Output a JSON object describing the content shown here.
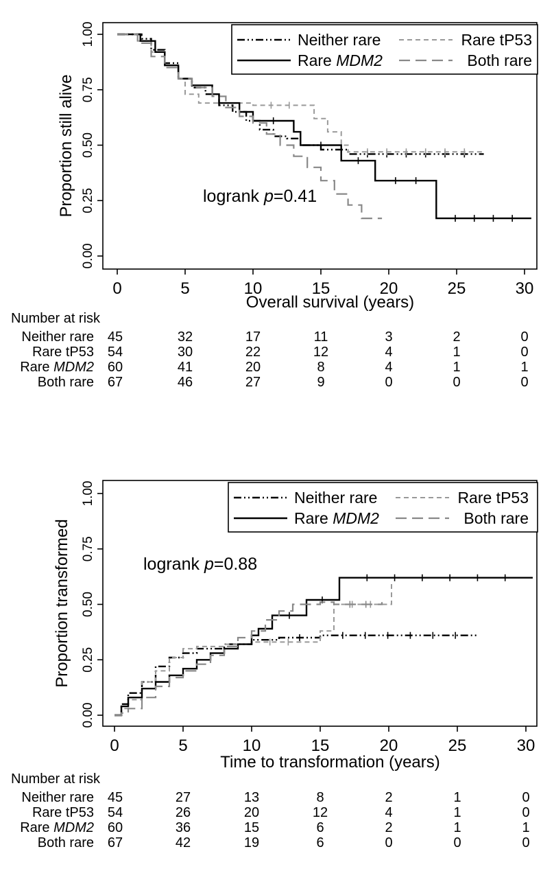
{
  "chart_data": [
    {
      "type": "line",
      "xlabel": "Overall survival (years)",
      "ylabel": "Proportion still alive",
      "xlim": [
        0,
        30.5
      ],
      "ylim": [
        0,
        1
      ],
      "xticks": [
        "0",
        "5",
        "10",
        "15",
        "20",
        "25",
        "30"
      ],
      "yticks": [
        "0.00",
        "0.25",
        "0.50",
        "0.75",
        "1.00"
      ],
      "annotation": {
        "prefix": "logrank ",
        "p": "p",
        "suffix": "=0.41"
      },
      "legend_position": "top-right",
      "series": [
        {
          "name": "Neither rare",
          "style": "dashdot",
          "color": "#000000",
          "points": [
            [
              0,
              1
            ],
            [
              1.8,
              0.98
            ],
            [
              2.5,
              0.93
            ],
            [
              3.5,
              0.87
            ],
            [
              4.5,
              0.8
            ],
            [
              5.5,
              0.76
            ],
            [
              6.5,
              0.73
            ],
            [
              7.5,
              0.68
            ],
            [
              8.5,
              0.65
            ],
            [
              9.5,
              0.61
            ],
            [
              10.5,
              0.57
            ],
            [
              11.5,
              0.54
            ],
            [
              12.5,
              0.53
            ],
            [
              13.5,
              0.5
            ],
            [
              15,
              0.48
            ],
            [
              17,
              0.46
            ],
            [
              27,
              0.46
            ]
          ]
        },
        {
          "name": "Rare tP53",
          "style": "shortdash",
          "color": "#999999",
          "points": [
            [
              0,
              1
            ],
            [
              1.5,
              0.97
            ],
            [
              2.5,
              0.92
            ],
            [
              3.5,
              0.86
            ],
            [
              4.5,
              0.8
            ],
            [
              5,
              0.73
            ],
            [
              6,
              0.69
            ],
            [
              7.5,
              0.69
            ],
            [
              8.5,
              0.69
            ],
            [
              10,
              0.68
            ],
            [
              14,
              0.68
            ],
            [
              14.5,
              0.62
            ],
            [
              15.5,
              0.56
            ],
            [
              16.5,
              0.5
            ],
            [
              17,
              0.47
            ],
            [
              27,
              0.47
            ]
          ]
        },
        {
          "name": "Rare MDM2",
          "label_prefix": "Rare ",
          "label_em": "MDM2",
          "style": "solid",
          "color": "#000000",
          "points": [
            [
              0,
              1
            ],
            [
              1.7,
              0.97
            ],
            [
              2.8,
              0.92
            ],
            [
              3.5,
              0.86
            ],
            [
              4.5,
              0.8
            ],
            [
              5.5,
              0.77
            ],
            [
              7,
              0.73
            ],
            [
              7.5,
              0.69
            ],
            [
              9,
              0.65
            ],
            [
              10,
              0.61
            ],
            [
              13,
              0.56
            ],
            [
              13.5,
              0.5
            ],
            [
              16.5,
              0.43
            ],
            [
              19,
              0.34
            ],
            [
              23.5,
              0.17
            ],
            [
              30.5,
              0.17
            ]
          ]
        },
        {
          "name": "Both rare",
          "style": "longdash",
          "color": "#888888",
          "points": [
            [
              0,
              1
            ],
            [
              1.5,
              0.96
            ],
            [
              2.5,
              0.9
            ],
            [
              3.5,
              0.85
            ],
            [
              4.5,
              0.8
            ],
            [
              5.5,
              0.76
            ],
            [
              7,
              0.72
            ],
            [
              8,
              0.67
            ],
            [
              9,
              0.63
            ],
            [
              10,
              0.6
            ],
            [
              11,
              0.55
            ],
            [
              12,
              0.5
            ],
            [
              13,
              0.45
            ],
            [
              14,
              0.4
            ],
            [
              15,
              0.34
            ],
            [
              16,
              0.28
            ],
            [
              17,
              0.23
            ],
            [
              18,
              0.17
            ],
            [
              19.5,
              0.17
            ]
          ]
        }
      ],
      "risk_table": {
        "header": "Number at risk",
        "times": [
          0,
          5,
          10,
          15,
          20,
          25,
          30
        ],
        "rows": [
          {
            "label": "Neither rare",
            "values": [
              "45",
              "32",
              "17",
              "11",
              "3",
              "2",
              "0"
            ]
          },
          {
            "label": "Rare tP53",
            "values": [
              "54",
              "30",
              "22",
              "12",
              "4",
              "1",
              "0"
            ]
          },
          {
            "label": "Rare MDM2",
            "label_prefix": "Rare ",
            "label_em": "MDM2",
            "values": [
              "60",
              "41",
              "20",
              "8",
              "4",
              "1",
              "1"
            ]
          },
          {
            "label": "Both rare",
            "values": [
              "67",
              "46",
              "27",
              "9",
              "0",
              "0",
              "0"
            ]
          }
        ]
      }
    },
    {
      "type": "line",
      "xlabel": "Time to transformation (years)",
      "ylabel": "Proportion transformed",
      "xlim": [
        0,
        30.5
      ],
      "ylim": [
        0,
        1
      ],
      "xticks": [
        "0",
        "5",
        "10",
        "15",
        "20",
        "25",
        "30"
      ],
      "yticks": [
        "0.00",
        "0.25",
        "0.50",
        "0.75",
        "1.00"
      ],
      "annotation": {
        "prefix": "logrank ",
        "p": "p",
        "suffix": "=0.88"
      },
      "legend_position": "top-right",
      "series": [
        {
          "name": "Neither rare",
          "style": "dashdot",
          "color": "#000000",
          "points": [
            [
              0,
              0
            ],
            [
              0.5,
              0.05
            ],
            [
              1,
              0.1
            ],
            [
              2,
              0.15
            ],
            [
              3,
              0.22
            ],
            [
              4,
              0.26
            ],
            [
              5,
              0.28
            ],
            [
              6,
              0.3
            ],
            [
              8,
              0.32
            ],
            [
              10,
              0.34
            ],
            [
              12,
              0.35
            ],
            [
              15,
              0.36
            ],
            [
              26.5,
              0.36
            ]
          ]
        },
        {
          "name": "Rare tP53",
          "style": "shortdash",
          "color": "#999999",
          "points": [
            [
              0,
              0
            ],
            [
              0.5,
              0.03
            ],
            [
              1,
              0.07
            ],
            [
              2,
              0.15
            ],
            [
              3,
              0.2
            ],
            [
              4,
              0.26
            ],
            [
              5,
              0.3
            ],
            [
              6,
              0.31
            ],
            [
              8,
              0.32
            ],
            [
              10,
              0.33
            ],
            [
              14,
              0.33
            ],
            [
              15,
              0.38
            ],
            [
              16,
              0.5
            ],
            [
              20,
              0.5
            ],
            [
              20.2,
              0.6
            ]
          ]
        },
        {
          "name": "Rare MDM2",
          "label_prefix": "Rare ",
          "label_em": "MDM2",
          "style": "solid",
          "color": "#000000",
          "points": [
            [
              0,
              0
            ],
            [
              0.5,
              0.04
            ],
            [
              1,
              0.08
            ],
            [
              2,
              0.12
            ],
            [
              3,
              0.15
            ],
            [
              4,
              0.18
            ],
            [
              5,
              0.21
            ],
            [
              6,
              0.25
            ],
            [
              7,
              0.28
            ],
            [
              8,
              0.3
            ],
            [
              9,
              0.32
            ],
            [
              10,
              0.36
            ],
            [
              10.5,
              0.39
            ],
            [
              11.5,
              0.45
            ],
            [
              14,
              0.52
            ],
            [
              16.3,
              0.52
            ],
            [
              16.4,
              0.62
            ],
            [
              30.5,
              0.62
            ]
          ]
        },
        {
          "name": "Both rare",
          "style": "longdash",
          "color": "#888888",
          "points": [
            [
              0,
              0
            ],
            [
              0.5,
              0.01
            ],
            [
              1,
              0.03
            ],
            [
              2,
              0.08
            ],
            [
              3,
              0.13
            ],
            [
              4,
              0.17
            ],
            [
              5,
              0.2
            ],
            [
              6,
              0.23
            ],
            [
              7,
              0.27
            ],
            [
              8,
              0.31
            ],
            [
              9,
              0.35
            ],
            [
              10,
              0.38
            ],
            [
              11,
              0.43
            ],
            [
              12,
              0.47
            ],
            [
              13,
              0.5
            ],
            [
              15,
              0.51
            ],
            [
              16,
              0.5
            ],
            [
              19.5,
              0.51
            ]
          ]
        }
      ],
      "risk_table": {
        "header": "Number at risk",
        "times": [
          0,
          5,
          10,
          15,
          20,
          25,
          30
        ],
        "rows": [
          {
            "label": "Neither rare",
            "values": [
              "45",
              "27",
              "13",
              "8",
              "2",
              "1",
              "0"
            ]
          },
          {
            "label": "Rare tP53",
            "values": [
              "54",
              "26",
              "20",
              "12",
              "4",
              "1",
              "0"
            ]
          },
          {
            "label": "Rare MDM2",
            "label_prefix": "Rare ",
            "label_em": "MDM2",
            "values": [
              "60",
              "36",
              "15",
              "6",
              "2",
              "1",
              "1"
            ]
          },
          {
            "label": "Both rare",
            "values": [
              "67",
              "42",
              "19",
              "6",
              "0",
              "0",
              "0"
            ]
          }
        ]
      }
    }
  ]
}
